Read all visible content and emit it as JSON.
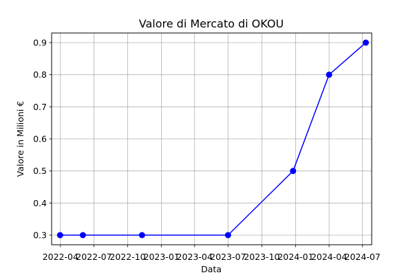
{
  "chart_data": {
    "type": "line",
    "title": "Valore di Mercato di OKOU",
    "xlabel": "Data",
    "ylabel": "Valore in Milioni €",
    "x_axis_type": "date",
    "xlim": [
      "2022-03-08",
      "2024-07-26"
    ],
    "ylim": [
      0.27,
      0.93
    ],
    "grid": true,
    "x_ticks": [
      {
        "date": "2022-04-01",
        "label": "2022-04"
      },
      {
        "date": "2022-07-01",
        "label": "2022-07"
      },
      {
        "date": "2022-10-01",
        "label": "2022-10"
      },
      {
        "date": "2023-01-01",
        "label": "2023-01"
      },
      {
        "date": "2023-04-01",
        "label": "2023-04"
      },
      {
        "date": "2023-07-01",
        "label": "2023-07"
      },
      {
        "date": "2023-10-01",
        "label": "2023-10"
      },
      {
        "date": "2024-01-01",
        "label": "2024-01"
      },
      {
        "date": "2024-04-01",
        "label": "2024-04"
      },
      {
        "date": "2024-07-01",
        "label": "2024-07"
      }
    ],
    "y_ticks": [
      {
        "value": 0.3,
        "label": "0.3"
      },
      {
        "value": 0.4,
        "label": "0.4"
      },
      {
        "value": 0.5,
        "label": "0.5"
      },
      {
        "value": 0.6,
        "label": "0.6"
      },
      {
        "value": 0.7,
        "label": "0.7"
      },
      {
        "value": 0.8,
        "label": "0.8"
      },
      {
        "value": 0.9,
        "label": "0.9"
      }
    ],
    "series": [
      {
        "color": "#0000ff",
        "marker": "circle",
        "points": [
          {
            "x": "2022-03-31",
            "y": 0.3
          },
          {
            "x": "2022-06-01",
            "y": 0.3
          },
          {
            "x": "2022-11-09",
            "y": 0.3
          },
          {
            "x": "2023-07-01",
            "y": 0.3
          },
          {
            "x": "2023-12-25",
            "y": 0.5
          },
          {
            "x": "2024-04-01",
            "y": 0.8
          },
          {
            "x": "2024-07-10",
            "y": 0.9
          }
        ]
      }
    ]
  }
}
